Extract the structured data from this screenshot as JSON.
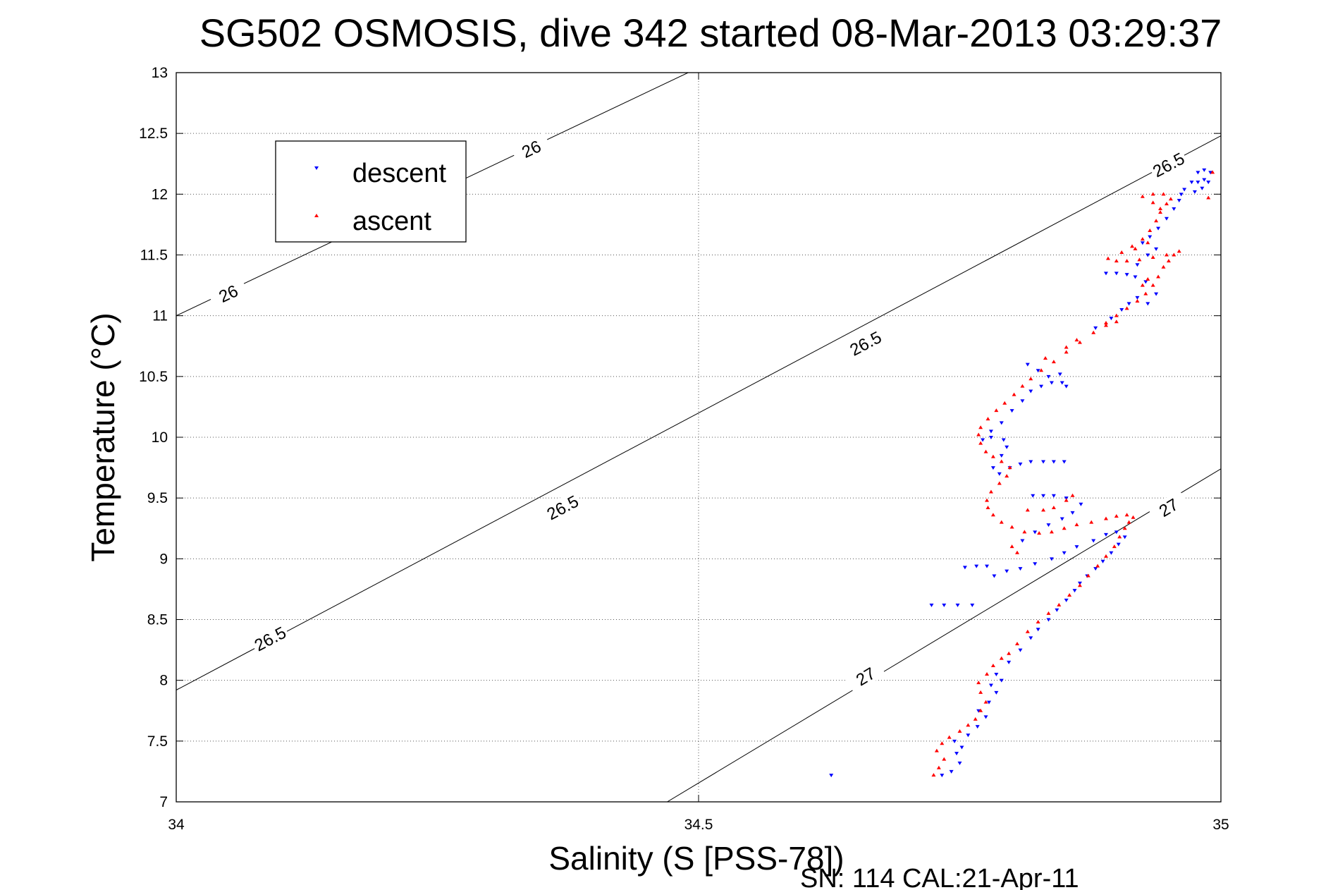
{
  "chart_data": {
    "type": "scatter",
    "title": "SG502 OSMOSIS, dive 342 started 08-Mar-2013 03:29:37",
    "xlabel": "Salinity (S [PSS-78])",
    "ylabel": "Temperature (°C)",
    "footer": "SN: 114  CAL:21-Apr-11",
    "xlim": [
      34,
      35
    ],
    "ylim": [
      7,
      13
    ],
    "x_ticks": [
      "34",
      "34.5",
      "35"
    ],
    "y_ticks": [
      "7",
      "7.5",
      "8",
      "8.5",
      "9",
      "9.5",
      "10",
      "10.5",
      "11",
      "11.5",
      "12",
      "12.5",
      "13"
    ],
    "grid": true,
    "legend_position": "top-left",
    "isopycnals": [
      {
        "label": "26",
        "points": [
          [
            34.0,
            11.0
          ],
          [
            34.49,
            13.0
          ]
        ],
        "label_positions": [
          [
            34.05,
            11.18
          ],
          [
            34.34,
            12.37
          ]
        ]
      },
      {
        "label": "26.5",
        "points": [
          [
            34.0,
            7.92
          ],
          [
            35.0,
            12.48
          ]
        ],
        "label_positions": [
          [
            34.09,
            8.34
          ],
          [
            34.37,
            9.42
          ],
          [
            34.66,
            10.77
          ],
          [
            34.95,
            12.24
          ]
        ]
      },
      {
        "label": "27",
        "points": [
          [
            34.47,
            7.0
          ],
          [
            35.0,
            9.74
          ]
        ],
        "label_positions": [
          [
            34.66,
            8.03
          ],
          [
            34.95,
            9.42
          ]
        ]
      }
    ],
    "series": [
      {
        "name": "descent",
        "color": "#0000ff",
        "marker": "triangle-down",
        "points": [
          [
            34.627,
            7.22
          ],
          [
            34.733,
            7.22
          ],
          [
            34.742,
            7.25
          ],
          [
            34.75,
            7.32
          ],
          [
            34.747,
            7.4
          ],
          [
            34.752,
            7.45
          ],
          [
            34.745,
            7.5
          ],
          [
            34.758,
            7.55
          ],
          [
            34.767,
            7.62
          ],
          [
            34.775,
            7.7
          ],
          [
            34.768,
            7.75
          ],
          [
            34.778,
            7.82
          ],
          [
            34.785,
            7.9
          ],
          [
            34.78,
            7.96
          ],
          [
            34.79,
            8.0
          ],
          [
            34.785,
            8.05
          ],
          [
            34.797,
            8.15
          ],
          [
            34.808,
            8.25
          ],
          [
            34.818,
            8.35
          ],
          [
            34.825,
            8.42
          ],
          [
            34.835,
            8.5
          ],
          [
            34.843,
            8.58
          ],
          [
            34.852,
            8.66
          ],
          [
            34.86,
            8.74
          ],
          [
            34.865,
            8.8
          ],
          [
            34.872,
            8.86
          ],
          [
            34.88,
            8.92
          ],
          [
            34.887,
            8.98
          ],
          [
            34.895,
            9.05
          ],
          [
            34.902,
            9.12
          ],
          [
            34.908,
            9.18
          ],
          [
            34.9,
            9.22
          ],
          [
            34.89,
            9.2
          ],
          [
            34.878,
            9.15
          ],
          [
            34.862,
            9.1
          ],
          [
            34.85,
            9.05
          ],
          [
            34.838,
            9.0
          ],
          [
            34.822,
            8.96
          ],
          [
            34.808,
            8.92
          ],
          [
            34.795,
            8.9
          ],
          [
            34.783,
            8.86
          ],
          [
            34.776,
            8.94
          ],
          [
            34.766,
            8.94
          ],
          [
            34.755,
            8.93
          ],
          [
            34.762,
            8.62
          ],
          [
            34.748,
            8.62
          ],
          [
            34.735,
            8.62
          ],
          [
            34.723,
            8.62
          ],
          [
            34.81,
            9.15
          ],
          [
            34.822,
            9.22
          ],
          [
            34.835,
            9.28
          ],
          [
            34.848,
            9.33
          ],
          [
            34.858,
            9.38
          ],
          [
            34.866,
            9.45
          ],
          [
            34.852,
            9.5
          ],
          [
            34.84,
            9.52
          ],
          [
            34.83,
            9.52
          ],
          [
            34.82,
            9.52
          ],
          [
            34.85,
            9.8
          ],
          [
            34.84,
            9.8
          ],
          [
            34.83,
            9.8
          ],
          [
            34.818,
            9.8
          ],
          [
            34.808,
            9.78
          ],
          [
            34.798,
            9.75
          ],
          [
            34.788,
            9.7
          ],
          [
            34.782,
            9.75
          ],
          [
            34.79,
            9.85
          ],
          [
            34.795,
            9.92
          ],
          [
            34.792,
            9.98
          ],
          [
            34.78,
            10.0
          ],
          [
            34.772,
            9.98
          ],
          [
            34.78,
            10.05
          ],
          [
            34.79,
            10.12
          ],
          [
            34.8,
            10.22
          ],
          [
            34.81,
            10.3
          ],
          [
            34.818,
            10.38
          ],
          [
            34.828,
            10.42
          ],
          [
            34.838,
            10.45
          ],
          [
            34.848,
            10.45
          ],
          [
            34.852,
            10.42
          ],
          [
            34.846,
            10.52
          ],
          [
            34.835,
            10.5
          ],
          [
            34.825,
            10.55
          ],
          [
            34.815,
            10.6
          ],
          [
            34.88,
            10.9
          ],
          [
            34.895,
            10.98
          ],
          [
            34.905,
            11.05
          ],
          [
            34.912,
            11.1
          ],
          [
            34.92,
            11.15
          ],
          [
            34.93,
            11.1
          ],
          [
            34.938,
            11.18
          ],
          [
            34.928,
            11.28
          ],
          [
            34.918,
            11.32
          ],
          [
            34.91,
            11.34
          ],
          [
            34.9,
            11.35
          ],
          [
            34.89,
            11.35
          ],
          [
            34.92,
            11.42
          ],
          [
            34.93,
            11.5
          ],
          [
            34.938,
            11.55
          ],
          [
            34.925,
            11.6
          ],
          [
            34.932,
            11.65
          ],
          [
            34.94,
            11.72
          ],
          [
            34.948,
            11.8
          ],
          [
            34.955,
            11.88
          ],
          [
            34.96,
            11.95
          ],
          [
            34.962,
            12.0
          ],
          [
            34.965,
            12.04
          ],
          [
            34.972,
            12.1
          ],
          [
            34.978,
            12.1
          ],
          [
            34.984,
            12.12
          ],
          [
            34.988,
            12.1
          ],
          [
            34.978,
            12.18
          ],
          [
            34.984,
            12.2
          ],
          [
            34.99,
            12.18
          ],
          [
            34.982,
            12.05
          ],
          [
            34.975,
            12.02
          ]
        ]
      },
      {
        "name": "ascent",
        "color": "#ff0000",
        "marker": "triangle-up",
        "points": [
          [
            34.725,
            7.22
          ],
          [
            34.73,
            7.28
          ],
          [
            34.735,
            7.35
          ],
          [
            34.728,
            7.42
          ],
          [
            34.733,
            7.48
          ],
          [
            34.74,
            7.53
          ],
          [
            34.75,
            7.58
          ],
          [
            34.758,
            7.63
          ],
          [
            34.765,
            7.68
          ],
          [
            34.77,
            7.75
          ],
          [
            34.775,
            7.82
          ],
          [
            34.77,
            7.9
          ],
          [
            34.768,
            7.98
          ],
          [
            34.776,
            8.05
          ],
          [
            34.782,
            8.12
          ],
          [
            34.79,
            8.18
          ],
          [
            34.797,
            8.22
          ],
          [
            34.805,
            8.3
          ],
          [
            34.815,
            8.4
          ],
          [
            34.825,
            8.48
          ],
          [
            34.835,
            8.55
          ],
          [
            34.845,
            8.62
          ],
          [
            34.855,
            8.7
          ],
          [
            34.865,
            8.78
          ],
          [
            34.873,
            8.86
          ],
          [
            34.882,
            8.94
          ],
          [
            34.89,
            9.02
          ],
          [
            34.898,
            9.1
          ],
          [
            34.903,
            9.18
          ],
          [
            34.908,
            9.25
          ],
          [
            34.912,
            9.3
          ],
          [
            34.916,
            9.34
          ],
          [
            34.91,
            9.36
          ],
          [
            34.9,
            9.35
          ],
          [
            34.89,
            9.33
          ],
          [
            34.876,
            9.3
          ],
          [
            34.862,
            9.28
          ],
          [
            34.85,
            9.25
          ],
          [
            34.838,
            9.22
          ],
          [
            34.826,
            9.21
          ],
          [
            34.812,
            9.22
          ],
          [
            34.8,
            9.26
          ],
          [
            34.79,
            9.3
          ],
          [
            34.782,
            9.36
          ],
          [
            34.777,
            9.42
          ],
          [
            34.776,
            9.48
          ],
          [
            34.78,
            9.55
          ],
          [
            34.788,
            9.62
          ],
          [
            34.795,
            9.68
          ],
          [
            34.798,
            9.75
          ],
          [
            34.79,
            9.8
          ],
          [
            34.782,
            9.84
          ],
          [
            34.775,
            9.88
          ],
          [
            34.77,
            9.95
          ],
          [
            34.768,
            10.02
          ],
          [
            34.77,
            10.08
          ],
          [
            34.777,
            10.15
          ],
          [
            34.785,
            10.22
          ],
          [
            34.793,
            10.28
          ],
          [
            34.802,
            10.35
          ],
          [
            34.81,
            10.42
          ],
          [
            34.818,
            10.48
          ],
          [
            34.828,
            10.55
          ],
          [
            34.84,
            10.62
          ],
          [
            34.852,
            10.7
          ],
          [
            34.865,
            10.78
          ],
          [
            34.878,
            10.86
          ],
          [
            34.89,
            10.94
          ],
          [
            34.9,
            11.0
          ],
          [
            34.91,
            11.06
          ],
          [
            34.92,
            11.12
          ],
          [
            34.928,
            11.18
          ],
          [
            34.935,
            11.25
          ],
          [
            34.94,
            11.32
          ],
          [
            34.945,
            11.4
          ],
          [
            34.95,
            11.45
          ],
          [
            34.955,
            11.5
          ],
          [
            34.96,
            11.53
          ],
          [
            34.948,
            11.5
          ],
          [
            34.935,
            11.48
          ],
          [
            34.922,
            11.46
          ],
          [
            34.91,
            11.45
          ],
          [
            34.9,
            11.45
          ],
          [
            34.892,
            11.47
          ],
          [
            34.905,
            11.52
          ],
          [
            34.915,
            11.57
          ],
          [
            34.925,
            11.63
          ],
          [
            34.932,
            11.7
          ],
          [
            34.938,
            11.78
          ],
          [
            34.942,
            11.85
          ],
          [
            34.948,
            11.92
          ],
          [
            34.952,
            11.96
          ],
          [
            34.945,
            12.0
          ],
          [
            34.935,
            12.0
          ],
          [
            34.925,
            11.98
          ],
          [
            34.935,
            11.93
          ],
          [
            34.942,
            11.88
          ],
          [
            34.93,
            11.6
          ],
          [
            34.918,
            11.55
          ],
          [
            34.93,
            11.3
          ],
          [
            34.925,
            11.25
          ],
          [
            34.9,
            10.95
          ],
          [
            34.89,
            10.92
          ],
          [
            34.862,
            10.8
          ],
          [
            34.852,
            10.74
          ],
          [
            34.832,
            10.65
          ],
          [
            34.815,
            9.4
          ],
          [
            34.83,
            9.4
          ],
          [
            34.84,
            9.42
          ],
          [
            34.852,
            9.48
          ],
          [
            34.858,
            9.52
          ],
          [
            34.805,
            9.05
          ],
          [
            34.8,
            9.1
          ],
          [
            34.988,
            11.97
          ],
          [
            34.992,
            12.18
          ]
        ]
      }
    ]
  },
  "legend": {
    "descent_label": "descent",
    "ascent_label": "ascent"
  }
}
